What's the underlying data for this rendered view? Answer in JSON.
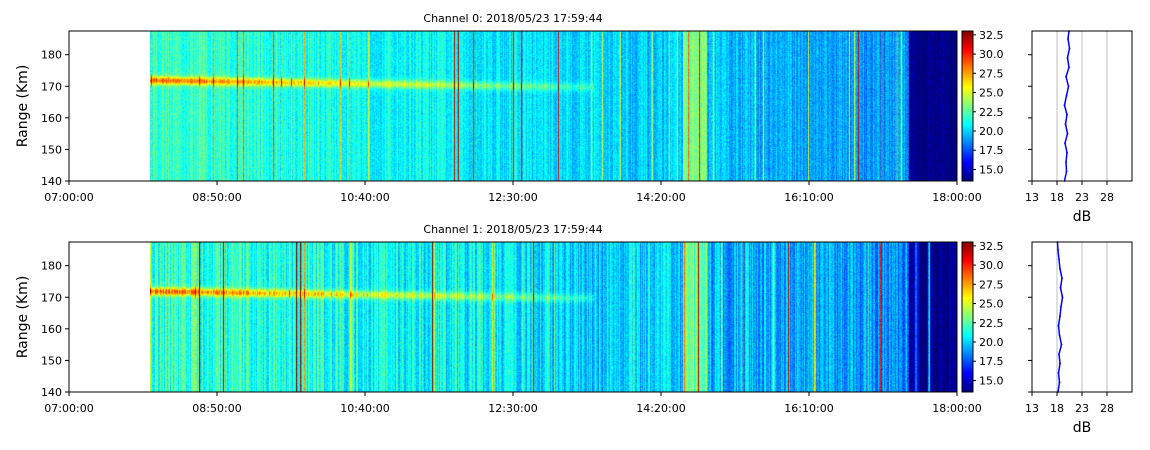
{
  "colors": {
    "jet": [
      "#00007f",
      "#0000ff",
      "#007fff",
      "#00ffff",
      "#7fff7f",
      "#ffff00",
      "#ff7f00",
      "#ff0000",
      "#7f0000"
    ],
    "profile_line": "#0000ff",
    "grid": "#b0b0b0"
  },
  "chart_data": [
    {
      "type": "heatmap",
      "title": "Channel 0: 2018/05/23 17:59:44",
      "xlabel": "",
      "ylabel": "Range (Km)",
      "x_ticks": [
        "07:00:00",
        "08:50:00",
        "10:40:00",
        "12:30:00",
        "14:20:00",
        "16:10:00",
        "18:00:00"
      ],
      "xlim": [
        "07:00:00",
        "18:00:00"
      ],
      "y_ticks": [
        140,
        150,
        160,
        170,
        180
      ],
      "ylim": [
        140,
        187.5
      ],
      "data_start": "08:00:00",
      "colorbar": {
        "ticks": [
          15.0,
          17.5,
          20.0,
          22.5,
          25.0,
          27.5,
          30.0,
          32.5
        ],
        "range": [
          13.5,
          33.0
        ],
        "colormap": "jet"
      },
      "profile": {
        "xlabel": "dB",
        "x_ticks": [
          13,
          18,
          23,
          28
        ],
        "xlim": [
          13,
          33
        ],
        "grid": true,
        "range_km": [
          140,
          143,
          146,
          149,
          152,
          155,
          158,
          161,
          164,
          167,
          170,
          173,
          176,
          179,
          182,
          185,
          187.5
        ],
        "db": [
          19.5,
          19.9,
          19.8,
          20.0,
          19.6,
          20.1,
          19.7,
          20.0,
          19.5,
          19.9,
          20.3,
          19.8,
          20.4,
          20.1,
          20.5,
          20.2,
          20.4
        ]
      }
    },
    {
      "type": "heatmap",
      "title": "Channel 1: 2018/05/23 17:59:44",
      "xlabel": "",
      "ylabel": "Range (Km)",
      "x_ticks": [
        "07:00:00",
        "08:50:00",
        "10:40:00",
        "12:30:00",
        "14:20:00",
        "16:10:00",
        "18:00:00"
      ],
      "xlim": [
        "07:00:00",
        "18:00:00"
      ],
      "y_ticks": [
        140,
        150,
        160,
        170,
        180
      ],
      "ylim": [
        140,
        187.5
      ],
      "data_start": "08:00:00",
      "colorbar": {
        "ticks": [
          15.0,
          17.5,
          20.0,
          22.5,
          25.0,
          27.5,
          30.0,
          32.5
        ],
        "range": [
          13.5,
          33.0
        ],
        "colormap": "jet"
      },
      "profile": {
        "xlabel": "dB",
        "x_ticks": [
          13,
          18,
          23,
          28
        ],
        "xlim": [
          13,
          33
        ],
        "grid": true,
        "range_km": [
          140,
          143,
          146,
          149,
          152,
          155,
          158,
          161,
          164,
          167,
          170,
          173,
          176,
          179,
          182,
          185,
          187.5
        ],
        "db": [
          18.2,
          18.5,
          18.3,
          18.6,
          18.4,
          18.9,
          18.5,
          18.3,
          18.6,
          18.8,
          19.1,
          18.7,
          19.0,
          18.6,
          18.4,
          18.2,
          18.1
        ]
      }
    }
  ]
}
